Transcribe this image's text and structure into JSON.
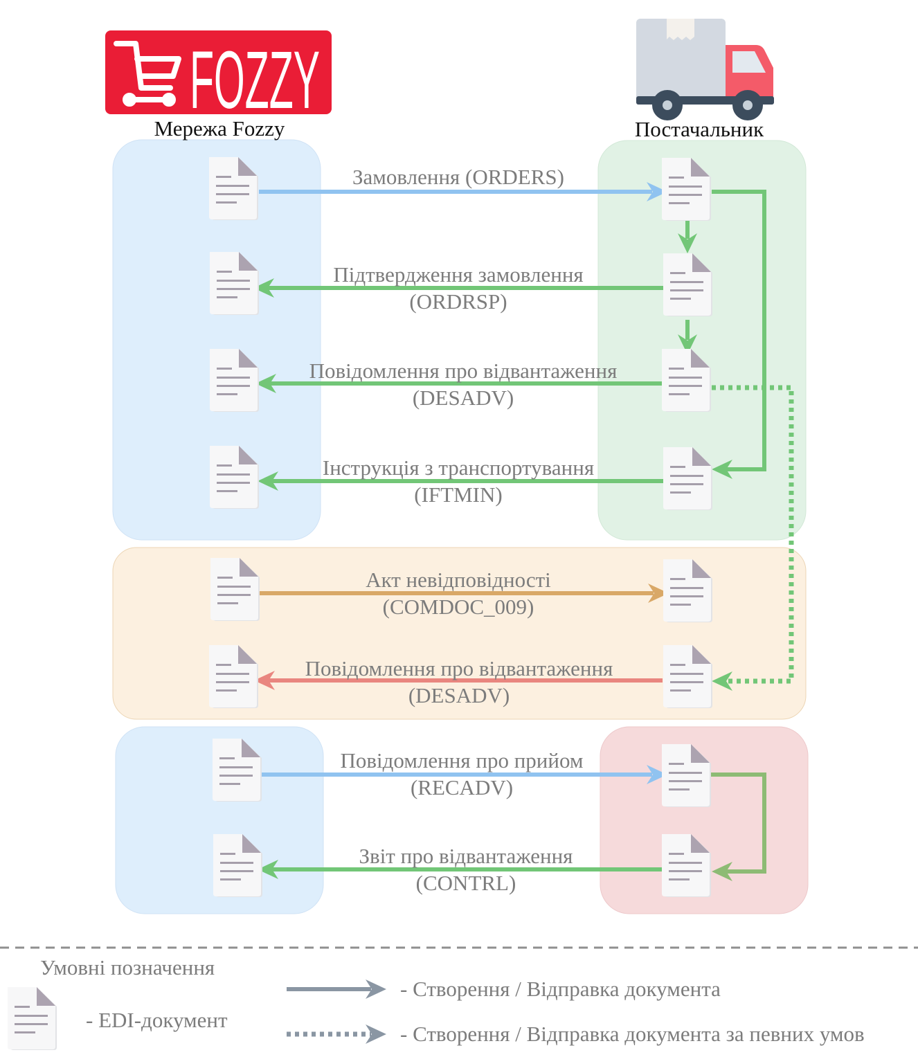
{
  "header": {
    "logo_text": "FOZZY",
    "left_title": "Мережа Fozzy",
    "right_title": "Постачальник"
  },
  "colors": {
    "brand_red": "#ea1d36",
    "flow_blue": "#90c3f0",
    "flow_green": "#72c677",
    "flow_orange": "#d9a867",
    "flow_red": "#e9867f",
    "flow_olive": "#8dbb74",
    "legend_gray": "#8a96a3",
    "panel_blue": "#deeefc",
    "panel_green": "#e1f2e5",
    "panel_orange": "#fcf0e0",
    "panel_pink": "#f6dadb"
  },
  "flows": [
    {
      "line1": "Замовлення (ORDERS)",
      "line2": ""
    },
    {
      "line1": "Підтвердження замовлення",
      "line2": "(ORDRSP)"
    },
    {
      "line1": "Повідомлення про відвантаження",
      "line2": "(DESADV)"
    },
    {
      "line1": "Інструкція з транспортування",
      "line2": "(IFTMIN)"
    },
    {
      "line1": "Акт невідповідності",
      "line2": "(COMDOC_009)"
    },
    {
      "line1": "Повідомлення про відвантаження",
      "line2": "(DESADV)"
    },
    {
      "line1": "Повідомлення про прийом",
      "line2": "(RECADV)"
    },
    {
      "line1": "Звіт про відвантаження",
      "line2": "(CONTRL)"
    }
  ],
  "legend": {
    "title": "Умовні позначення",
    "doc_label": "-  EDI-документ",
    "solid_label": "-  Створення / Відправка документа",
    "dotted_label": "-  Створення / Відправка документа за певних умов"
  },
  "icons": {
    "doc": "document-icon",
    "cart": "shopping-cart-icon",
    "truck": "delivery-truck-icon"
  }
}
